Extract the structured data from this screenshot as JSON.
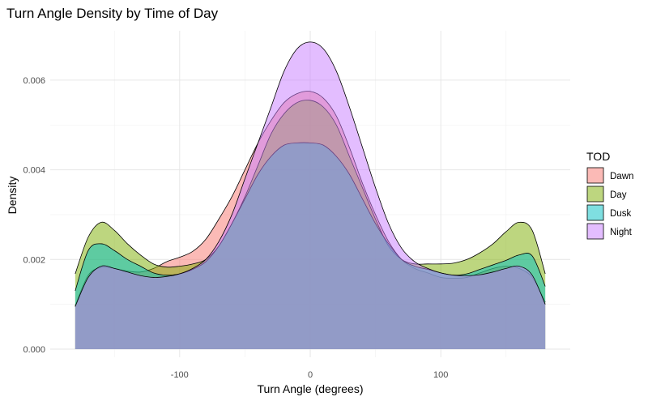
{
  "chart_data": {
    "type": "area",
    "title": "Turn Angle Density by Time of Day",
    "xlabel": "Turn Angle (degrees)",
    "ylabel": "Density",
    "xlim": [
      -180,
      180
    ],
    "ylim": [
      0,
      0.0069
    ],
    "x_ticks": [
      -100,
      0,
      100
    ],
    "x_tick_labels": [
      "-100",
      "0",
      "100"
    ],
    "y_ticks": [
      0.0,
      0.002,
      0.004,
      0.006
    ],
    "y_tick_labels": [
      "0.000",
      "0.002",
      "0.004",
      "0.006"
    ],
    "grid": true,
    "legend": {
      "title": "TOD",
      "position": "right"
    },
    "x": [
      -180,
      -170,
      -160,
      -150,
      -140,
      -130,
      -120,
      -110,
      -100,
      -90,
      -80,
      -70,
      -60,
      -50,
      -40,
      -30,
      -20,
      -10,
      0,
      10,
      20,
      30,
      40,
      50,
      60,
      70,
      80,
      90,
      100,
      110,
      120,
      130,
      140,
      150,
      160,
      170,
      180
    ],
    "series": [
      {
        "name": "Dawn",
        "color": "#F8766D",
        "values": [
          0.00097,
          0.00165,
          0.00182,
          0.0018,
          0.00174,
          0.00172,
          0.0018,
          0.00195,
          0.00205,
          0.00218,
          0.00245,
          0.0029,
          0.0034,
          0.004,
          0.0046,
          0.0051,
          0.0055,
          0.0057,
          0.00575,
          0.0056,
          0.0052,
          0.0045,
          0.0037,
          0.003,
          0.0024,
          0.002,
          0.0018,
          0.0017,
          0.0016,
          0.00158,
          0.0016,
          0.0017,
          0.0018,
          0.00185,
          0.0018,
          0.0016,
          0.00105
        ]
      },
      {
        "name": "Day",
        "color": "#7CAE00",
        "values": [
          0.00168,
          0.0025,
          0.00283,
          0.00265,
          0.00235,
          0.0021,
          0.0019,
          0.00183,
          0.00185,
          0.0019,
          0.002,
          0.0023,
          0.0028,
          0.0034,
          0.0041,
          0.0048,
          0.00525,
          0.0055,
          0.00555,
          0.0054,
          0.005,
          0.0043,
          0.0036,
          0.0029,
          0.0023,
          0.002,
          0.0019,
          0.0019,
          0.0019,
          0.00192,
          0.002,
          0.00215,
          0.00235,
          0.00262,
          0.00283,
          0.00265,
          0.00168
        ]
      },
      {
        "name": "Dusk",
        "color": "#00BFC4",
        "values": [
          0.0013,
          0.0022,
          0.00235,
          0.0022,
          0.002,
          0.00185,
          0.0017,
          0.00165,
          0.00168,
          0.00178,
          0.00195,
          0.0023,
          0.0028,
          0.00335,
          0.0039,
          0.0043,
          0.00455,
          0.0046,
          0.0046,
          0.00455,
          0.0043,
          0.0039,
          0.00335,
          0.0028,
          0.00235,
          0.002,
          0.00185,
          0.00178,
          0.0017,
          0.00165,
          0.00168,
          0.00178,
          0.00188,
          0.00198,
          0.0021,
          0.00208,
          0.0014
        ]
      },
      {
        "name": "Night",
        "color": "#C77CFF",
        "values": [
          0.00095,
          0.0016,
          0.00185,
          0.0018,
          0.00172,
          0.00164,
          0.0016,
          0.00162,
          0.00168,
          0.0018,
          0.002,
          0.0024,
          0.003,
          0.0038,
          0.0046,
          0.0054,
          0.0062,
          0.0067,
          0.00685,
          0.0067,
          0.0062,
          0.0054,
          0.0045,
          0.0036,
          0.0028,
          0.00225,
          0.00195,
          0.0018,
          0.0017,
          0.00165,
          0.00164,
          0.00166,
          0.00172,
          0.0018,
          0.00185,
          0.00165,
          0.001
        ]
      }
    ]
  }
}
